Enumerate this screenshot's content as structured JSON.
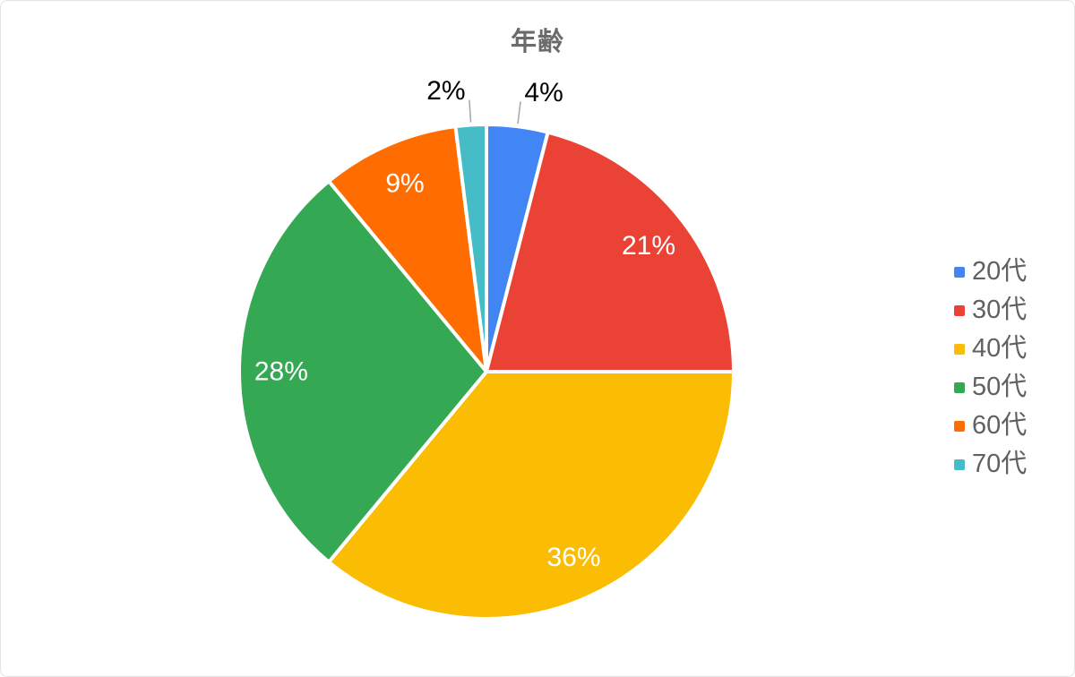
{
  "chart": {
    "background": "#ffffff",
    "border_color": "#e4e4e4",
    "title_color": "#6b6b6b",
    "legend_text_color": "#616161",
    "inside_label_color": "#ffffff",
    "outside_label_color": "#000000",
    "leader_line_color": "#a6a6a6",
    "slice_stroke_color": "#ffffff"
  },
  "chart_data": {
    "type": "pie",
    "title": "年齢",
    "categories": [
      "20代",
      "30代",
      "40代",
      "50代",
      "60代",
      "70代"
    ],
    "values": [
      4,
      21,
      36,
      28,
      9,
      2
    ],
    "labels": [
      "4%",
      "21%",
      "36%",
      "28%",
      "9%",
      "2%"
    ],
    "colors": [
      "#4285f4",
      "#ea4335",
      "#fbbc04",
      "#34a853",
      "#ff6d01",
      "#46bdc6"
    ],
    "label_placement": [
      "outside",
      "inside",
      "inside",
      "inside",
      "inside",
      "outside"
    ],
    "legend_position": "right",
    "start_angle": 0,
    "direction": "clockwise",
    "total": 100
  }
}
